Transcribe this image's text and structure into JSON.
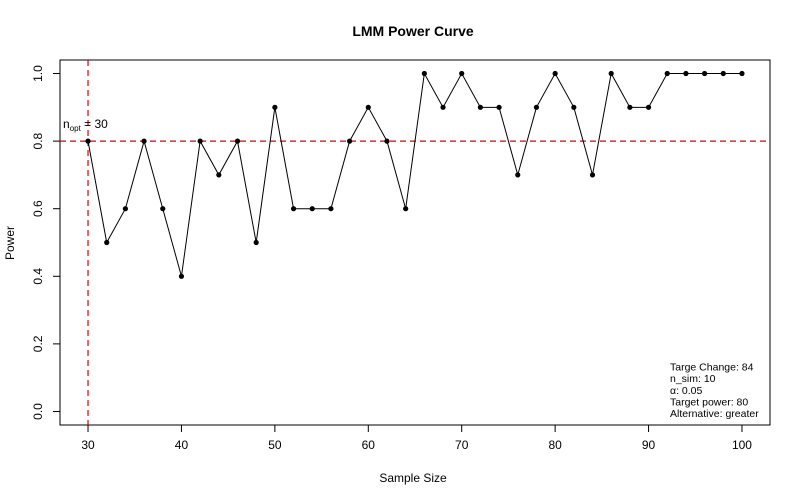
{
  "chart_data": {
    "type": "line",
    "title": "LMM Power Curve",
    "xlabel": "Sample Size",
    "ylabel": "Power",
    "x": [
      30,
      32,
      34,
      36,
      38,
      40,
      42,
      44,
      46,
      48,
      50,
      52,
      54,
      56,
      58,
      60,
      62,
      64,
      66,
      68,
      70,
      72,
      74,
      76,
      78,
      80,
      82,
      84,
      86,
      88,
      90,
      92,
      94,
      96,
      98,
      100
    ],
    "series": [
      {
        "values": [
          0.8,
          0.5,
          0.6,
          0.8,
          0.6,
          0.4,
          0.8,
          0.7,
          0.8,
          0.5,
          0.9,
          0.6,
          0.6,
          0.6,
          0.8,
          0.9,
          0.8,
          0.6,
          1.0,
          0.9,
          1.0,
          0.9,
          0.9,
          0.7,
          0.9,
          1.0,
          0.9,
          0.7,
          1.0,
          0.9,
          0.9,
          1.0,
          1.0,
          1.0,
          1.0,
          1.0
        ]
      }
    ],
    "xlim": [
      27,
      103
    ],
    "ylim": [
      -0.04,
      1.04
    ],
    "x_ticks": [
      30,
      40,
      50,
      60,
      70,
      80,
      90,
      100
    ],
    "x_tick_labels": [
      "30",
      "40",
      "50",
      "60",
      "70",
      "80",
      "90",
      "100"
    ],
    "y_ticks": [
      0.0,
      0.2,
      0.4,
      0.6,
      0.8,
      1.0
    ],
    "y_tick_labels": [
      "0.0",
      "0.2",
      "0.4",
      "0.6",
      "0.8",
      "1.0"
    ],
    "grid": false,
    "reference_lines": {
      "target_power": 0.8,
      "n_opt": 30,
      "color": "#dd0000"
    },
    "n_opt_label": {
      "main": "n",
      "sub": "opt",
      "rest": " = 30"
    },
    "info_box": [
      "Targe Change: 84",
      "n_sim: 10",
      "α: 0.05",
      "Target power: 80",
      "Alternative: greater"
    ],
    "line_color": "#000000"
  }
}
